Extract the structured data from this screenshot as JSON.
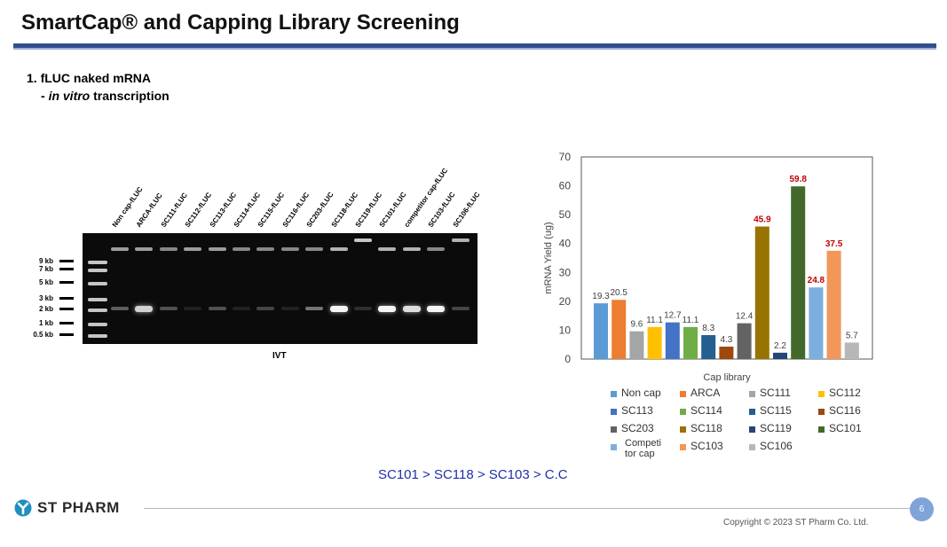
{
  "slide": {
    "title": "SmartCap® and Capping Library Screening",
    "section_heading": "1. fLUC naked mRNA",
    "subheading_prefix": "- ",
    "subheading_italic": "in vitro",
    "subheading_suffix": " transcription",
    "ranking": "SC101 > SC118 > SC103 > C.C",
    "logo_text": "ST PHARM",
    "page_number": "6",
    "copyright": "Copyright © 2023 ST Pharm Co. Ltd.",
    "colors": {
      "title_rule": "#2f4f8f",
      "ranking_text": "#1f2fa8",
      "highlight_label": "#c00000",
      "page_circle": "#7fa4d8"
    }
  },
  "gel": {
    "caption": "IVT",
    "markers": [
      "9 kb",
      "7 kb",
      "5 kb",
      "3 kb",
      "2 kb",
      "1 kb",
      "0.5 kb"
    ],
    "lanes": [
      {
        "label": "Non cap-fLUC",
        "band": 0.35,
        "well": 0.7
      },
      {
        "label": "ARCA-fLUC",
        "band": 0.85,
        "well": 0.7
      },
      {
        "label": "SC111-fLUC",
        "band": 0.3,
        "well": 0.6
      },
      {
        "label": "SC112-fLUC",
        "band": 0.1,
        "well": 0.7
      },
      {
        "label": "SC113-fLUC",
        "band": 0.3,
        "well": 0.7
      },
      {
        "label": "SC114-fLUC",
        "band": 0.1,
        "well": 0.6
      },
      {
        "label": "SC115-fLUC",
        "band": 0.25,
        "well": 0.6
      },
      {
        "label": "SC116-fLUC",
        "band": 0.1,
        "well": 0.6
      },
      {
        "label": "SC203-fLUC",
        "band": 0.45,
        "well": 0.6
      },
      {
        "label": "SC118-fLUC",
        "band": 1.0,
        "well": 0.8
      },
      {
        "label": "SC119-fLUC",
        "band": 0.15,
        "well": 0.9
      },
      {
        "label": "SC101-fLUC",
        "band": 1.0,
        "well": 0.8
      },
      {
        "label": "competitor cap-fLUC",
        "band": 0.9,
        "well": 0.8
      },
      {
        "label": "SC103-fLUC",
        "band": 1.0,
        "well": 0.6
      },
      {
        "label": "SC106-fLUC",
        "band": 0.25,
        "well": 0.8
      }
    ]
  },
  "chart_data": {
    "type": "bar",
    "title": "",
    "xlabel": "Cap library",
    "ylabel": "mRNA Yield (ug)",
    "ylim": [
      0,
      70
    ],
    "yticks": [
      "0",
      "10",
      "20",
      "30",
      "40",
      "50",
      "60",
      "70"
    ],
    "grid": false,
    "legend_position": "bottom",
    "series": [
      {
        "name": "Non cap",
        "value": 19.3,
        "label": "19.3",
        "color": "#5b9bd5",
        "highlight": false
      },
      {
        "name": "ARCA",
        "value": 20.5,
        "label": "20.5",
        "color": "#ed7d31",
        "highlight": false
      },
      {
        "name": "SC111",
        "value": 9.6,
        "label": "9.6",
        "color": "#a5a5a5",
        "highlight": false
      },
      {
        "name": "SC112",
        "value": 11.1,
        "label": "11.1",
        "color": "#ffc000",
        "highlight": false
      },
      {
        "name": "SC113",
        "value": 12.7,
        "label": "12.7",
        "color": "#4472c4",
        "highlight": false
      },
      {
        "name": "SC114",
        "value": 11.1,
        "label": "11.1",
        "color": "#70ad47",
        "highlight": false
      },
      {
        "name": "SC115",
        "value": 8.3,
        "label": "8.3",
        "color": "#255e91",
        "highlight": false
      },
      {
        "name": "SC116",
        "value": 4.3,
        "label": "4.3",
        "color": "#9e480e",
        "highlight": false
      },
      {
        "name": "SC203",
        "value": 12.4,
        "label": "12.4",
        "color": "#636363",
        "highlight": false
      },
      {
        "name": "SC118",
        "value": 45.9,
        "label": "45.9",
        "color": "#997300",
        "highlight": true
      },
      {
        "name": "SC119",
        "value": 2.2,
        "label": "2.2",
        "color": "#264478",
        "highlight": false
      },
      {
        "name": "SC101",
        "value": 59.8,
        "label": "59.8",
        "color": "#43682b",
        "highlight": true
      },
      {
        "name": "Competitor cap",
        "legend_lines": [
          "Competi",
          "tor cap"
        ],
        "value": 24.8,
        "label": "24.8",
        "color": "#7cafdd",
        "highlight": true
      },
      {
        "name": "SC103",
        "value": 37.5,
        "label": "37.5",
        "color": "#f1975a",
        "highlight": true
      },
      {
        "name": "SC106",
        "value": 5.7,
        "label": "5.7",
        "color": "#b7b7b7",
        "highlight": false
      }
    ]
  }
}
